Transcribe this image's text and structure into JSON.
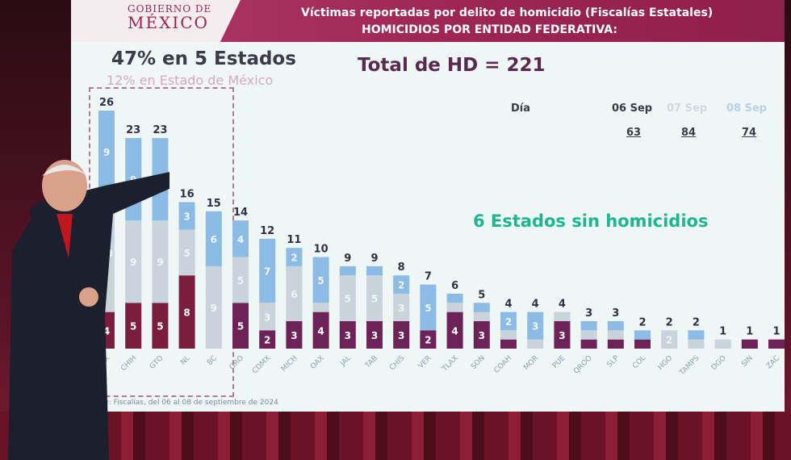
{
  "header": {
    "logo_line1": "GOBIERNO DE",
    "logo_line2": "MÉXICO",
    "title": "Víctimas reportadas por delito de homicidio (Fiscalías Estatales)",
    "subtitle": "HOMICIDIOS POR ENTIDAD FEDERATIVA:"
  },
  "highlights": {
    "share": "47% en 5 Estados",
    "share_sub": "12% en Estado de México",
    "total": "Total de HD = 221",
    "no_homicides": "6 Estados sin homicidios"
  },
  "legend": {
    "label": "Día",
    "days": [
      {
        "label": "06 Sep",
        "total": "63",
        "color": "#6e2358"
      },
      {
        "label": "07 Sep",
        "total": "84",
        "color": "#c9d3dc"
      },
      {
        "label": "08 Sep",
        "total": "74",
        "color": "#8cbbe6"
      }
    ]
  },
  "source": "Fuente: Fiscalías, del 06 al 08 de septiembre de 2024",
  "chart_data": {
    "type": "bar",
    "stacked": true,
    "categories": [
      "EDOMEX",
      "CHIH",
      "GTO",
      "NL",
      "BC",
      "GRO",
      "CDMX",
      "MICH",
      "OAX",
      "JAL",
      "TAB",
      "CHIS",
      "VER",
      "TLAX",
      "SON",
      "COAH",
      "MOR",
      "PUE",
      "QROO",
      "SLP",
      "COL",
      "HGO",
      "TAMPS",
      "DGO",
      "SIN",
      "ZAC"
    ],
    "series": [
      {
        "name": "06 Sep",
        "values": [
          4,
          5,
          5,
          8,
          0,
          5,
          2,
          3,
          4,
          3,
          3,
          3,
          2,
          4,
          3,
          1,
          0,
          3,
          1,
          1,
          1,
          0,
          0,
          0,
          1,
          1
        ]
      },
      {
        "name": "07 Sep",
        "values": [
          13,
          9,
          9,
          5,
          9,
          5,
          3,
          6,
          1,
          5,
          5,
          3,
          0,
          1,
          1,
          1,
          1,
          1,
          1,
          1,
          0,
          2,
          1,
          1,
          0,
          0
        ]
      },
      {
        "name": "08 Sep",
        "values": [
          9,
          9,
          9,
          3,
          6,
          4,
          7,
          2,
          5,
          1,
          1,
          2,
          5,
          1,
          1,
          2,
          3,
          0,
          1,
          1,
          1,
          0,
          1,
          0,
          0,
          0
        ]
      }
    ],
    "totals": [
      26,
      23,
      23,
      16,
      15,
      14,
      12,
      11,
      10,
      9,
      9,
      8,
      7,
      6,
      5,
      4,
      4,
      4,
      3,
      3,
      2,
      2,
      2,
      1,
      1,
      1
    ],
    "ylim": [
      0,
      26
    ],
    "grid": false
  }
}
